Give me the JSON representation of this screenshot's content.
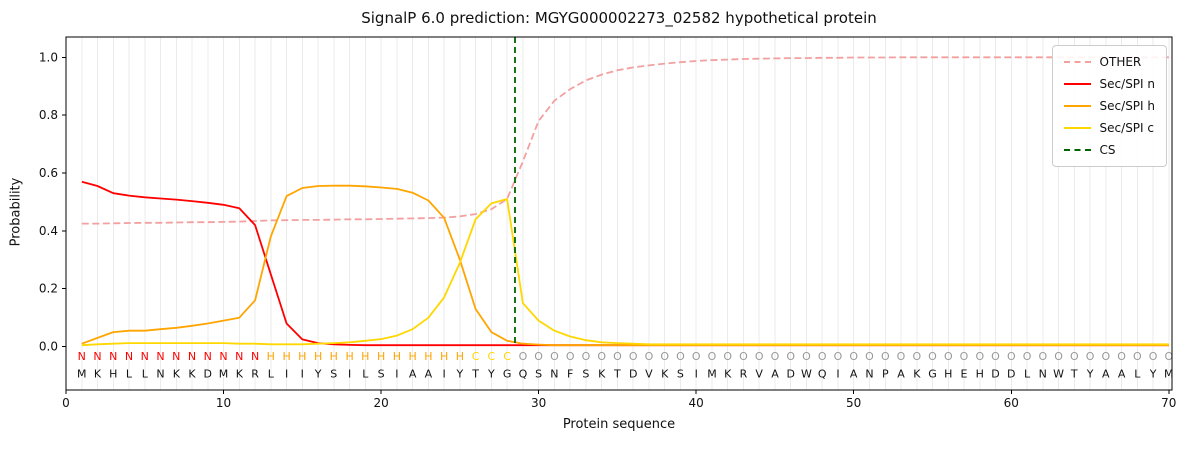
{
  "chart_data": {
    "type": "line",
    "title": "SignalP 6.0 prediction: MGYG000002273_02582 hypothetical protein",
    "xlabel": "Protein sequence",
    "ylabel": "Probability",
    "xlim": [
      0,
      70.2
    ],
    "ylim": [
      -0.15,
      1.07
    ],
    "xticks": [
      0,
      10,
      20,
      30,
      40,
      50,
      60,
      70
    ],
    "yticks": [
      0.0,
      0.2,
      0.4,
      0.6,
      0.8,
      1.0
    ],
    "grid": "vertical line per residue",
    "grid_color": "#ebebeb",
    "legend_position": "upper right",
    "x_start": 1,
    "x_end": 70,
    "sequence": "MKHLLNKKDMKRLIIYSILSIAAIYTYGQSNFSKTDVKSIMKRVADWQIANPAKGHEHDDLNWTYAALYM",
    "region_labels": "NNNNNNNNNNNNHHHHHHHHHHHHHCCCOOOOOOOOOOOOOOOOOOOOOOOOOOOOOOOOOOOOOOOOOO",
    "region_colors": {
      "N": "#ff0000",
      "H": "#ffa500",
      "C": "#ffd700",
      "O": "#999999"
    },
    "series": [
      {
        "name": "OTHER",
        "color": "#f2a0a0",
        "dash": "dashed",
        "values": [
          0.425,
          0.425,
          0.426,
          0.427,
          0.428,
          0.428,
          0.429,
          0.43,
          0.43,
          0.431,
          0.432,
          0.434,
          0.436,
          0.437,
          0.438,
          0.438,
          0.439,
          0.44,
          0.44,
          0.441,
          0.442,
          0.443,
          0.444,
          0.446,
          0.45,
          0.458,
          0.475,
          0.51,
          0.64,
          0.78,
          0.85,
          0.89,
          0.92,
          0.94,
          0.955,
          0.965,
          0.972,
          0.978,
          0.983,
          0.987,
          0.99,
          0.992,
          0.994,
          0.995,
          0.996,
          0.997,
          0.997,
          0.998,
          0.998,
          0.999,
          0.999,
          0.999,
          1.0,
          1.0,
          1.0,
          1.0,
          1.0,
          1.0,
          1.0,
          1.0,
          1.0,
          1.0,
          1.0,
          1.0,
          1.0,
          1.0,
          1.0,
          1.0,
          1.0,
          1.0
        ]
      },
      {
        "name": "Sec/SPI n",
        "color": "#ff0000",
        "dash": "solid",
        "values": [
          0.57,
          0.555,
          0.53,
          0.522,
          0.516,
          0.512,
          0.508,
          0.503,
          0.497,
          0.49,
          0.478,
          0.42,
          0.25,
          0.08,
          0.025,
          0.012,
          0.008,
          0.006,
          0.005,
          0.005,
          0.005,
          0.005,
          0.005,
          0.005,
          0.005,
          0.005,
          0.005,
          0.005,
          0.005,
          0.005,
          0.005,
          0.005,
          0.005,
          0.005,
          0.005,
          0.005,
          0.005,
          0.005,
          0.005,
          0.005,
          0.005,
          0.005,
          0.005,
          0.005,
          0.005,
          0.005,
          0.005,
          0.005,
          0.005,
          0.005,
          0.005,
          0.005,
          0.005,
          0.005,
          0.005,
          0.005,
          0.005,
          0.005,
          0.005,
          0.005,
          0.005,
          0.005,
          0.005,
          0.005,
          0.005,
          0.005,
          0.005,
          0.005,
          0.005,
          0.005
        ]
      },
      {
        "name": "Sec/SPI h",
        "color": "#ffa500",
        "dash": "solid",
        "values": [
          0.01,
          0.03,
          0.05,
          0.055,
          0.055,
          0.06,
          0.065,
          0.072,
          0.08,
          0.09,
          0.1,
          0.16,
          0.38,
          0.52,
          0.548,
          0.555,
          0.556,
          0.556,
          0.554,
          0.55,
          0.545,
          0.532,
          0.505,
          0.445,
          0.3,
          0.13,
          0.05,
          0.02,
          0.01,
          0.007,
          0.005,
          0.005,
          0.005,
          0.005,
          0.005,
          0.005,
          0.005,
          0.005,
          0.005,
          0.005,
          0.005,
          0.005,
          0.005,
          0.005,
          0.005,
          0.005,
          0.005,
          0.005,
          0.005,
          0.005,
          0.005,
          0.005,
          0.005,
          0.005,
          0.005,
          0.005,
          0.005,
          0.005,
          0.005,
          0.005,
          0.005,
          0.005,
          0.005,
          0.005,
          0.005,
          0.005,
          0.005,
          0.005,
          0.005,
          0.005
        ]
      },
      {
        "name": "Sec/SPI c",
        "color": "#ffd700",
        "dash": "solid",
        "values": [
          0.005,
          0.008,
          0.01,
          0.012,
          0.012,
          0.012,
          0.012,
          0.012,
          0.012,
          0.012,
          0.01,
          0.01,
          0.008,
          0.008,
          0.008,
          0.01,
          0.012,
          0.015,
          0.02,
          0.026,
          0.038,
          0.06,
          0.1,
          0.17,
          0.29,
          0.44,
          0.495,
          0.51,
          0.15,
          0.09,
          0.055,
          0.035,
          0.022,
          0.015,
          0.012,
          0.01,
          0.008,
          0.008,
          0.008,
          0.008,
          0.008,
          0.008,
          0.008,
          0.008,
          0.008,
          0.008,
          0.008,
          0.008,
          0.008,
          0.008,
          0.008,
          0.008,
          0.008,
          0.008,
          0.008,
          0.008,
          0.008,
          0.008,
          0.008,
          0.008,
          0.008,
          0.008,
          0.008,
          0.008,
          0.008,
          0.008,
          0.008,
          0.008,
          0.008,
          0.008
        ]
      }
    ],
    "cs_line": {
      "name": "CS",
      "x": 28.5,
      "color": "#006400",
      "dash": "dashed"
    }
  }
}
